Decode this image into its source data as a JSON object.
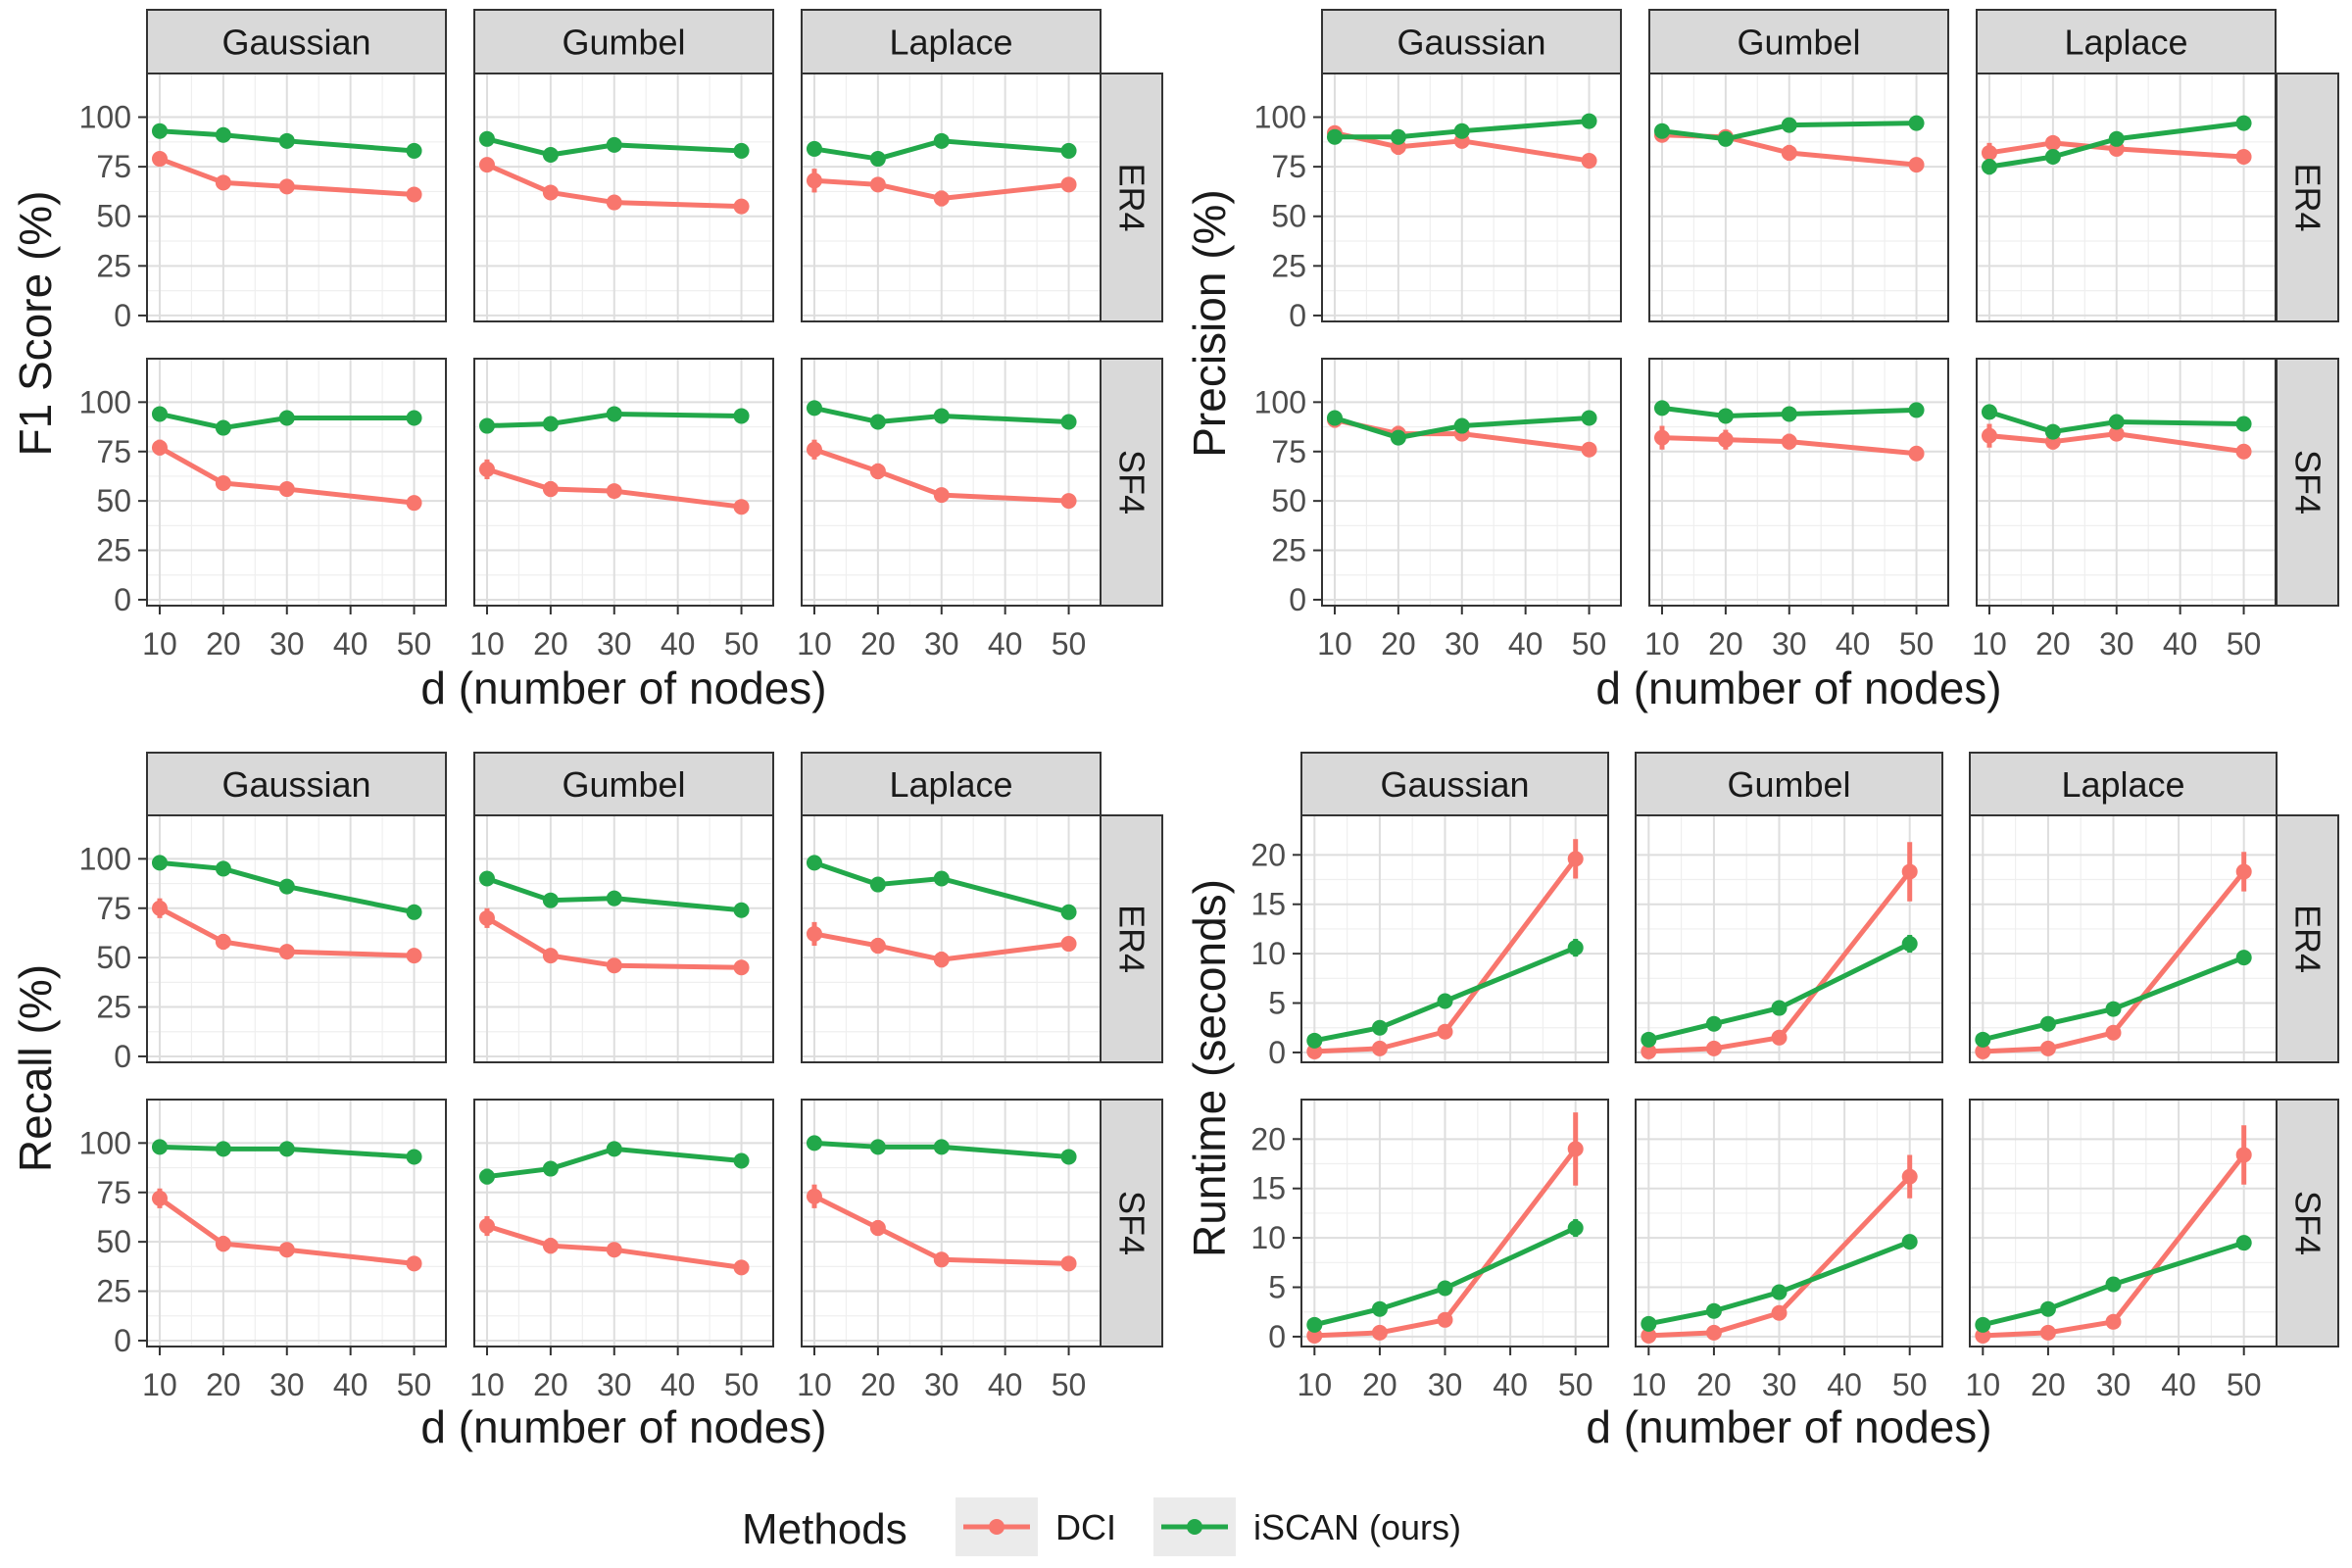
{
  "legend": {
    "title": "Methods",
    "items": [
      {
        "label": "DCI",
        "color": "#F8766D"
      },
      {
        "label": "iSCAN (ours)",
        "color": "#22A84A"
      }
    ]
  },
  "colors": {
    "DCI": "#F8766D",
    "iSCAN": "#22A84A"
  },
  "chart_data": [
    {
      "type": "line",
      "ylabel": "F1 Score (%)",
      "xlabel": "d (number of nodes)",
      "x": [
        10,
        20,
        30,
        50
      ],
      "xlim": [
        8,
        55
      ],
      "xticks": [
        10,
        20,
        30,
        40,
        50
      ],
      "ylim": [
        -3,
        122
      ],
      "yticks": [
        0,
        25,
        50,
        75,
        100
      ],
      "columns": [
        "Gaussian",
        "Gumbel",
        "Laplace"
      ],
      "rows": [
        "ER4",
        "SF4"
      ],
      "panels": [
        {
          "col": "Gaussian",
          "row": "ER4",
          "DCI": [
            79,
            67,
            65,
            61
          ],
          "iSCAN": [
            93,
            91,
            88,
            83
          ],
          "DCI_err": [
            3,
            3,
            2,
            2
          ],
          "iSCAN_err": [
            1,
            1,
            1,
            1
          ]
        },
        {
          "col": "Gumbel",
          "row": "ER4",
          "DCI": [
            76,
            62,
            57,
            55
          ],
          "iSCAN": [
            89,
            81,
            86,
            83
          ],
          "DCI_err": [
            3,
            3,
            3,
            2
          ],
          "iSCAN_err": [
            1,
            1,
            1,
            1
          ]
        },
        {
          "col": "Laplace",
          "row": "ER4",
          "DCI": [
            68,
            66,
            59,
            66
          ],
          "iSCAN": [
            84,
            79,
            88,
            83
          ],
          "DCI_err": [
            6,
            3,
            4,
            2
          ],
          "iSCAN_err": [
            1,
            1,
            1,
            1
          ]
        },
        {
          "col": "Gaussian",
          "row": "SF4",
          "DCI": [
            77,
            59,
            56,
            49
          ],
          "iSCAN": [
            94,
            87,
            92,
            92
          ],
          "DCI_err": [
            4,
            3,
            2,
            2
          ],
          "iSCAN_err": [
            1,
            1,
            1,
            1
          ]
        },
        {
          "col": "Gumbel",
          "row": "SF4",
          "DCI": [
            66,
            56,
            55,
            47
          ],
          "iSCAN": [
            88,
            89,
            94,
            93
          ],
          "DCI_err": [
            5,
            4,
            3,
            2
          ],
          "iSCAN_err": [
            1,
            1,
            1,
            1
          ]
        },
        {
          "col": "Laplace",
          "row": "SF4",
          "DCI": [
            76,
            65,
            53,
            50
          ],
          "iSCAN": [
            97,
            90,
            93,
            90
          ],
          "DCI_err": [
            5,
            4,
            2,
            2
          ],
          "iSCAN_err": [
            1,
            1,
            1,
            1
          ]
        }
      ]
    },
    {
      "type": "line",
      "ylabel": "Precision (%)",
      "xlabel": "d (number of nodes)",
      "x": [
        10,
        20,
        30,
        50
      ],
      "xlim": [
        8,
        55
      ],
      "xticks": [
        10,
        20,
        30,
        40,
        50
      ],
      "ylim": [
        -3,
        122
      ],
      "yticks": [
        0,
        25,
        50,
        75,
        100
      ],
      "columns": [
        "Gaussian",
        "Gumbel",
        "Laplace"
      ],
      "rows": [
        "ER4",
        "SF4"
      ],
      "panels": [
        {
          "col": "Gaussian",
          "row": "ER4",
          "DCI": [
            92,
            85,
            88,
            78
          ],
          "iSCAN": [
            90,
            90,
            93,
            98
          ],
          "DCI_err": [
            3,
            4,
            2,
            2
          ],
          "iSCAN_err": [
            2,
            1,
            1,
            1
          ]
        },
        {
          "col": "Gumbel",
          "row": "ER4",
          "DCI": [
            91,
            90,
            82,
            76
          ],
          "iSCAN": [
            93,
            89,
            96,
            97
          ],
          "DCI_err": [
            3,
            3,
            4,
            2
          ],
          "iSCAN_err": [
            1,
            1,
            1,
            1
          ]
        },
        {
          "col": "Laplace",
          "row": "ER4",
          "DCI": [
            82,
            87,
            84,
            80
          ],
          "iSCAN": [
            75,
            80,
            89,
            97
          ],
          "DCI_err": [
            5,
            3,
            3,
            2
          ],
          "iSCAN_err": [
            4,
            2,
            1,
            1
          ]
        },
        {
          "col": "Gaussian",
          "row": "SF4",
          "DCI": [
            91,
            84,
            84,
            76
          ],
          "iSCAN": [
            92,
            82,
            88,
            92
          ],
          "DCI_err": [
            4,
            4,
            3,
            2
          ],
          "iSCAN_err": [
            2,
            2,
            1,
            1
          ]
        },
        {
          "col": "Gumbel",
          "row": "SF4",
          "DCI": [
            82,
            81,
            80,
            74
          ],
          "iSCAN": [
            97,
            93,
            94,
            96
          ],
          "DCI_err": [
            6,
            5,
            4,
            3
          ],
          "iSCAN_err": [
            1,
            1,
            1,
            1
          ]
        },
        {
          "col": "Laplace",
          "row": "SF4",
          "DCI": [
            83,
            80,
            84,
            75
          ],
          "iSCAN": [
            95,
            85,
            90,
            89
          ],
          "DCI_err": [
            6,
            4,
            3,
            3
          ],
          "iSCAN_err": [
            1,
            2,
            1,
            1
          ]
        }
      ]
    },
    {
      "type": "line",
      "ylabel": "Recall (%)",
      "xlabel": "d (number of nodes)",
      "x": [
        10,
        20,
        30,
        50
      ],
      "xlim": [
        8,
        55
      ],
      "xticks": [
        10,
        20,
        30,
        40,
        50
      ],
      "ylim": [
        -3,
        122
      ],
      "yticks": [
        0,
        25,
        50,
        75,
        100
      ],
      "columns": [
        "Gaussian",
        "Gumbel",
        "Laplace"
      ],
      "rows": [
        "ER4",
        "SF4"
      ],
      "panels": [
        {
          "col": "Gaussian",
          "row": "ER4",
          "DCI": [
            75,
            58,
            53,
            51
          ],
          "iSCAN": [
            98,
            95,
            86,
            73
          ],
          "DCI_err": [
            5,
            4,
            2,
            2
          ],
          "iSCAN_err": [
            1,
            1,
            1,
            1
          ]
        },
        {
          "col": "Gumbel",
          "row": "ER4",
          "DCI": [
            70,
            51,
            46,
            45
          ],
          "iSCAN": [
            90,
            79,
            80,
            74
          ],
          "DCI_err": [
            5,
            3,
            3,
            2
          ],
          "iSCAN_err": [
            1,
            1,
            1,
            1
          ]
        },
        {
          "col": "Laplace",
          "row": "ER4",
          "DCI": [
            62,
            56,
            49,
            57
          ],
          "iSCAN": [
            98,
            87,
            90,
            73
          ],
          "DCI_err": [
            6,
            4,
            4,
            2
          ],
          "iSCAN_err": [
            1,
            1,
            1,
            1
          ]
        },
        {
          "col": "Gaussian",
          "row": "SF4",
          "DCI": [
            72,
            49,
            46,
            39
          ],
          "iSCAN": [
            98,
            97,
            97,
            93
          ],
          "DCI_err": [
            5,
            4,
            3,
            2
          ],
          "iSCAN_err": [
            1,
            1,
            1,
            1
          ]
        },
        {
          "col": "Gumbel",
          "row": "SF4",
          "DCI": [
            58,
            48,
            46,
            37
          ],
          "iSCAN": [
            83,
            87,
            97,
            91
          ],
          "DCI_err": [
            5,
            4,
            3,
            2
          ],
          "iSCAN_err": [
            4,
            2,
            1,
            1
          ]
        },
        {
          "col": "Laplace",
          "row": "SF4",
          "DCI": [
            73,
            57,
            41,
            39
          ],
          "iSCAN": [
            100,
            98,
            98,
            93
          ],
          "DCI_err": [
            6,
            4,
            2,
            2
          ],
          "iSCAN_err": [
            1,
            1,
            1,
            1
          ]
        }
      ]
    },
    {
      "type": "line",
      "ylabel": "Runtime (seconds)",
      "xlabel": "d (number of nodes)",
      "x": [
        10,
        20,
        30,
        50
      ],
      "xlim": [
        8,
        55
      ],
      "xticks": [
        10,
        20,
        30,
        40,
        50
      ],
      "ylim": [
        -1,
        24
      ],
      "yticks": [
        0,
        5,
        10,
        15,
        20
      ],
      "columns": [
        "Gaussian",
        "Gumbel",
        "Laplace"
      ],
      "rows": [
        "ER4",
        "SF4"
      ],
      "panels": [
        {
          "col": "Gaussian",
          "row": "ER4",
          "DCI": [
            0.1,
            0.4,
            2.1,
            19.6
          ],
          "iSCAN": [
            1.2,
            2.5,
            5.2,
            10.6
          ],
          "DCI_err": [
            0.1,
            0.2,
            0.3,
            2.0
          ],
          "iSCAN_err": [
            0.2,
            0.2,
            0.3,
            0.9
          ]
        },
        {
          "col": "Gumbel",
          "row": "ER4",
          "DCI": [
            0.1,
            0.4,
            1.5,
            18.3
          ],
          "iSCAN": [
            1.3,
            2.9,
            4.5,
            11.0
          ],
          "DCI_err": [
            0.1,
            0.2,
            0.3,
            3.0
          ],
          "iSCAN_err": [
            0.2,
            0.2,
            0.3,
            0.9
          ]
        },
        {
          "col": "Laplace",
          "row": "ER4",
          "DCI": [
            0.1,
            0.4,
            2.0,
            18.3
          ],
          "iSCAN": [
            1.3,
            2.9,
            4.4,
            9.6
          ],
          "DCI_err": [
            0.1,
            0.2,
            0.3,
            2.0
          ],
          "iSCAN_err": [
            0.2,
            0.2,
            0.3,
            0.5
          ]
        },
        {
          "col": "Gaussian",
          "row": "SF4",
          "DCI": [
            0.1,
            0.4,
            1.7,
            19.0
          ],
          "iSCAN": [
            1.2,
            2.8,
            4.9,
            11.0
          ],
          "DCI_err": [
            0.1,
            0.2,
            0.3,
            3.7
          ],
          "iSCAN_err": [
            0.2,
            0.2,
            0.3,
            0.9
          ]
        },
        {
          "col": "Gumbel",
          "row": "SF4",
          "DCI": [
            0.1,
            0.4,
            2.4,
            16.2
          ],
          "iSCAN": [
            1.3,
            2.6,
            4.5,
            9.6
          ],
          "DCI_err": [
            0.1,
            0.2,
            0.3,
            2.2
          ],
          "iSCAN_err": [
            0.2,
            0.2,
            0.3,
            0.5
          ]
        },
        {
          "col": "Laplace",
          "row": "SF4",
          "DCI": [
            0.1,
            0.4,
            1.5,
            18.4
          ],
          "iSCAN": [
            1.2,
            2.8,
            5.3,
            9.5
          ],
          "DCI_err": [
            0.1,
            0.2,
            0.3,
            3.0
          ],
          "iSCAN_err": [
            0.2,
            0.2,
            0.3,
            0.5
          ]
        }
      ]
    }
  ]
}
